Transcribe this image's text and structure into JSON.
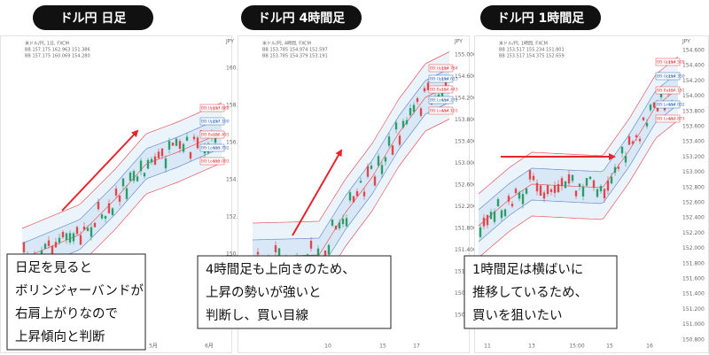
{
  "panels": [
    {
      "title": "ドル円 日足",
      "header": [
        "米ドル/円, 1日, FXCM",
        "BB 157.175 162.963 151.386",
        "BB 157.175 160.069 154.280"
      ],
      "unit": "JPY",
      "yticks": [
        "160.000",
        "158.000",
        "156.000",
        "154.000",
        "152.000",
        "150.000"
      ],
      "xticks": [
        "5月",
        "6月"
      ],
      "bands": [
        {
          "label": "BB:Upper",
          "value": "157.888"
        },
        {
          "label": "BB:Upper",
          "value": "157.190"
        },
        {
          "label": "BB:Basis",
          "value": "156.491"
        },
        {
          "label": "BB:Lower",
          "value": "155.792"
        },
        {
          "label": "BB:Lower",
          "value": "155.093"
        }
      ],
      "note": [
        "日足を見ると",
        "ボリンジャーバンドが",
        "右肩上がりなので",
        "上昇傾向と判断"
      ]
    },
    {
      "title": "ドル円 4時間足",
      "header": [
        "米ドル/円, 4時間, FXCM",
        "BB 153.785 154.974 152.597",
        "BB 153.785 154.379 153.191"
      ],
      "unit": "JPY",
      "yticks": [
        "155.000",
        "154.600",
        "154.200",
        "153.800",
        "153.400",
        "153.000",
        "152.600",
        "152.200",
        "151.800",
        "151.400",
        "151.000",
        "150.600",
        "150.200"
      ],
      "xticks": [
        "10",
        "15",
        "17"
      ],
      "bands": [
        {
          "label": "BB:Upper",
          "value": "154.784"
        },
        {
          "label": "BB:Upper",
          "value": "154.613"
        },
        {
          "label": "BB:Basis",
          "value": "154.443"
        },
        {
          "label": "BB:Lower",
          "value": "154.272"
        },
        {
          "label": "BB:Lower",
          "value": "154.101"
        }
      ],
      "note": [
        "4時間足も上向きのため、",
        "上昇の勢いが強いと",
        "判断し、買い目線"
      ]
    },
    {
      "title": "ドル円 1時間足",
      "header": [
        "米ドル/円, 1時間, FXCM",
        "BB 153.517 155.234 151.801",
        "BB 153.517 154.375 152.659"
      ],
      "unit": "JPY",
      "yticks": [
        "154.600",
        "154.400",
        "154.200",
        "154.000",
        "153.800",
        "153.600",
        "153.400",
        "153.200",
        "153.000",
        "152.800",
        "152.600",
        "152.400",
        "152.200",
        "152.000",
        "151.800",
        "151.600",
        "151.400",
        "151.200",
        "151.000",
        "150.800"
      ],
      "xticks": [
        "11",
        "13",
        "15:00",
        "15",
        "16"
      ],
      "bands": [
        {
          "label": "BB:Upper",
          "value": "154.509"
        },
        {
          "label": "BB:Upper",
          "value": "154.350"
        },
        {
          "label": "BB:Basis",
          "value": "154.191"
        },
        {
          "label": "BB:Lower",
          "value": "154.032"
        },
        {
          "label": "BB:Lower",
          "value": "153.873"
        }
      ],
      "note": [
        "1時間足は横ばいに",
        "推移しているため、",
        "買いを狙いたい"
      ]
    }
  ]
}
